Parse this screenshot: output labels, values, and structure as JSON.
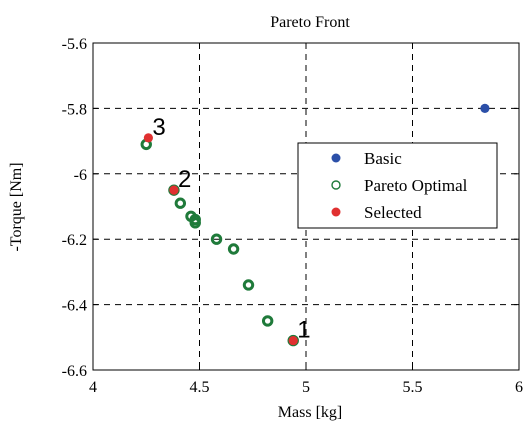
{
  "chart_data": {
    "type": "scatter",
    "title": "Pareto Front",
    "xlabel": "Mass [kg]",
    "ylabel": "-Torque [Nm]",
    "xlim": [
      4,
      6
    ],
    "ylim": [
      -6.6,
      -5.6
    ],
    "xticks": [
      "4",
      "4.5",
      "5",
      "5.5",
      "6"
    ],
    "yticks": [
      "-5.6",
      "-5.8",
      "-6",
      "-6.2",
      "-6.4",
      "-6.6"
    ],
    "grid": true,
    "legend_position": "right",
    "series": [
      {
        "name": "Basic",
        "color": "#2b4fa8",
        "marker": "filled-circle",
        "points": [
          [
            5.84,
            -5.8
          ]
        ]
      },
      {
        "name": "Pareto Optimal",
        "color": "#1f7a3a",
        "marker": "open-circle",
        "points": [
          [
            4.25,
            -5.91
          ],
          [
            4.38,
            -6.05
          ],
          [
            4.41,
            -6.09
          ],
          [
            4.46,
            -6.13
          ],
          [
            4.48,
            -6.14
          ],
          [
            4.48,
            -6.15
          ],
          [
            4.58,
            -6.2
          ],
          [
            4.66,
            -6.23
          ],
          [
            4.73,
            -6.34
          ],
          [
            4.82,
            -6.45
          ],
          [
            4.94,
            -6.51
          ]
        ]
      },
      {
        "name": "Selected",
        "color": "#e03030",
        "marker": "filled-circle",
        "points": [
          [
            4.26,
            -5.89
          ],
          [
            4.38,
            -6.05
          ],
          [
            4.94,
            -6.51
          ]
        ]
      }
    ],
    "annotations": [
      {
        "text": "1",
        "x": 4.94,
        "y": -6.51
      },
      {
        "text": "2",
        "x": 4.38,
        "y": -6.05
      },
      {
        "text": "3",
        "x": 4.26,
        "y": -5.89
      }
    ]
  }
}
